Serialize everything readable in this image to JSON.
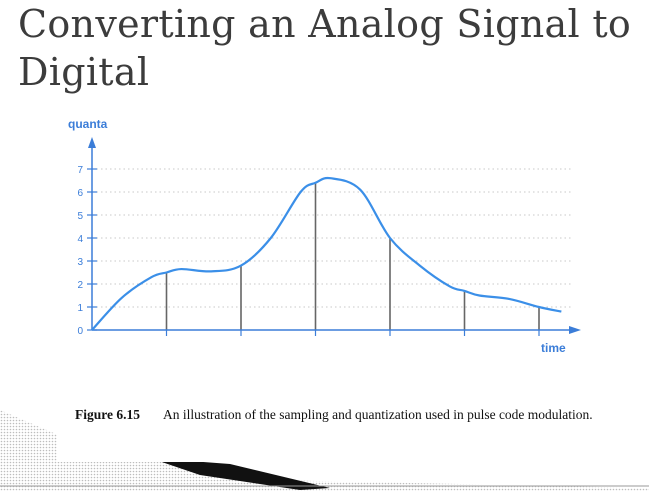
{
  "slide": {
    "title": "Converting an Analog Signal to Digital"
  },
  "figure": {
    "caption_label": "Figure 6.15",
    "caption_text": "An illustration of the sampling and quantization used in pulse code modulation."
  },
  "chart_data": {
    "type": "line",
    "ylabel": "quanta",
    "xlabel": "time",
    "ylim": [
      0,
      7
    ],
    "y_ticks": [
      "0",
      "1",
      "2",
      "3",
      "4",
      "5",
      "6",
      "7"
    ],
    "grid": true,
    "sample_times": [
      1,
      2,
      3,
      4,
      5,
      6
    ],
    "sample_values": [
      2.5,
      2.8,
      6.4,
      4.0,
      1.7,
      1.0
    ],
    "curve": {
      "x": [
        0,
        0.4,
        0.8,
        1.0,
        1.2,
        1.6,
        2.0,
        2.4,
        2.8,
        3.0,
        3.2,
        3.6,
        4.0,
        4.4,
        4.8,
        5.0,
        5.2,
        5.6,
        6.0,
        6.3
      ],
      "y": [
        0,
        1.4,
        2.3,
        2.5,
        2.65,
        2.55,
        2.8,
        4.0,
        6.0,
        6.4,
        6.6,
        6.1,
        4.0,
        2.8,
        1.9,
        1.7,
        1.5,
        1.35,
        1.0,
        0.8
      ]
    },
    "colors": {
      "curve": "#3b8fe8",
      "axis": "#3b7dd8",
      "sample_lines": "#666666",
      "grid": "#c8c8c8"
    }
  }
}
